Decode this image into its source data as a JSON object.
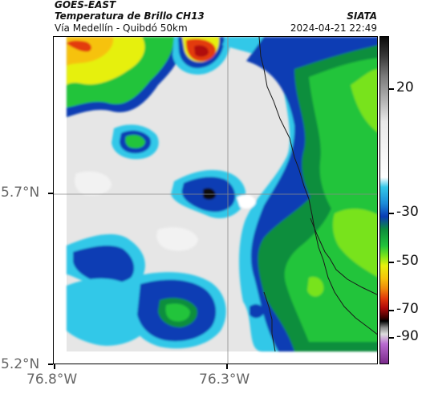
{
  "header": {
    "satellite": "GOES-EAST",
    "product": "Temperatura de Brillo CH13",
    "region": "Vía Medellín - Quibdó 50km",
    "organization": "SIATA",
    "timestamp": "2024-04-21 22:49"
  },
  "axes": {
    "y_ticks": [
      "5.7°N",
      "5.2°N"
    ],
    "x_ticks": [
      "76.8°W",
      "76.3°W"
    ]
  },
  "colorbar": {
    "labels": [
      "20",
      "-30",
      "-50",
      "-70",
      "-90"
    ]
  },
  "colors": {
    "cold_core": "#0a0a0a",
    "deep_blue": "#0a3cb4",
    "cyan": "#33c8e8",
    "green": "#21c43a",
    "yellow": "#e6f00c",
    "orange": "#f08a0a",
    "red": "#e33a0a",
    "gray_background": "#d6d6d6"
  }
}
